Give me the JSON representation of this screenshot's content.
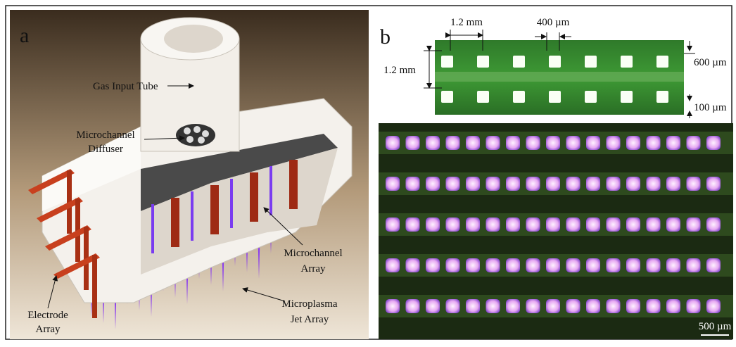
{
  "panel_a": {
    "label": "a",
    "callouts": [
      {
        "lines": [
          "Gas Input Tube"
        ]
      },
      {
        "lines": [
          "Microchannel",
          "Diffuser"
        ]
      },
      {
        "lines": [
          "Microchannel",
          "Array"
        ]
      },
      {
        "lines": [
          "Microplasma",
          "Jet Array"
        ]
      },
      {
        "lines": [
          "Electrode",
          "Array"
        ]
      }
    ]
  },
  "panel_b": {
    "label": "b",
    "dimensions": [
      "1.2 mm",
      "400 µm",
      "1.2 mm",
      "600 µm",
      "100 µm"
    ],
    "scale_bar": "500 µm"
  }
}
